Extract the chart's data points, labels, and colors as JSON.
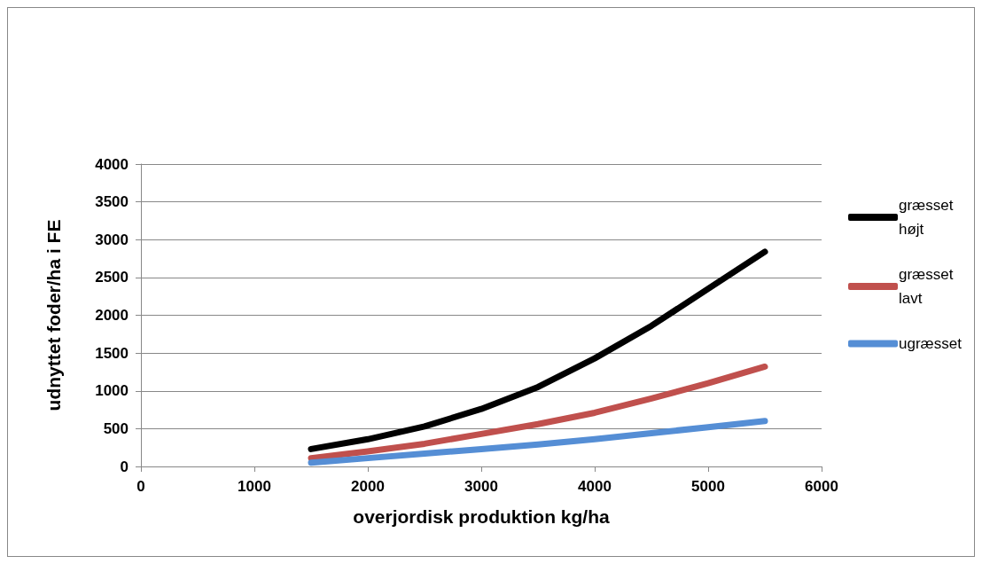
{
  "chart_data": {
    "type": "line",
    "xlabel": "overjordisk produktion kg/ha",
    "ylabel": "udnyttet foder/ha i FE",
    "x": [
      1500,
      2000,
      2500,
      3000,
      3500,
      4000,
      4500,
      5000,
      5500
    ],
    "series": [
      {
        "name": "græsset højt",
        "color": "#000000",
        "values": [
          230,
          360,
          530,
          760,
          1050,
          1430,
          1860,
          2350,
          2840
        ]
      },
      {
        "name": "græsset lavt",
        "color": "#c0504d",
        "values": [
          110,
          200,
          300,
          430,
          560,
          710,
          900,
          1100,
          1320
        ]
      },
      {
        "name": "ugræsset",
        "color": "#558ed5",
        "values": [
          50,
          110,
          170,
          230,
          290,
          360,
          440,
          520,
          600
        ]
      }
    ],
    "xlim": [
      0,
      6000
    ],
    "xticks": [
      0,
      1000,
      2000,
      3000,
      4000,
      5000,
      6000
    ],
    "ylim": [
      0,
      4000
    ],
    "yticks": [
      0,
      500,
      1000,
      1500,
      2000,
      2500,
      3000,
      3500,
      4000
    ],
    "grid": "y",
    "legend": "right",
    "marker": "none",
    "line_style": "solid"
  }
}
